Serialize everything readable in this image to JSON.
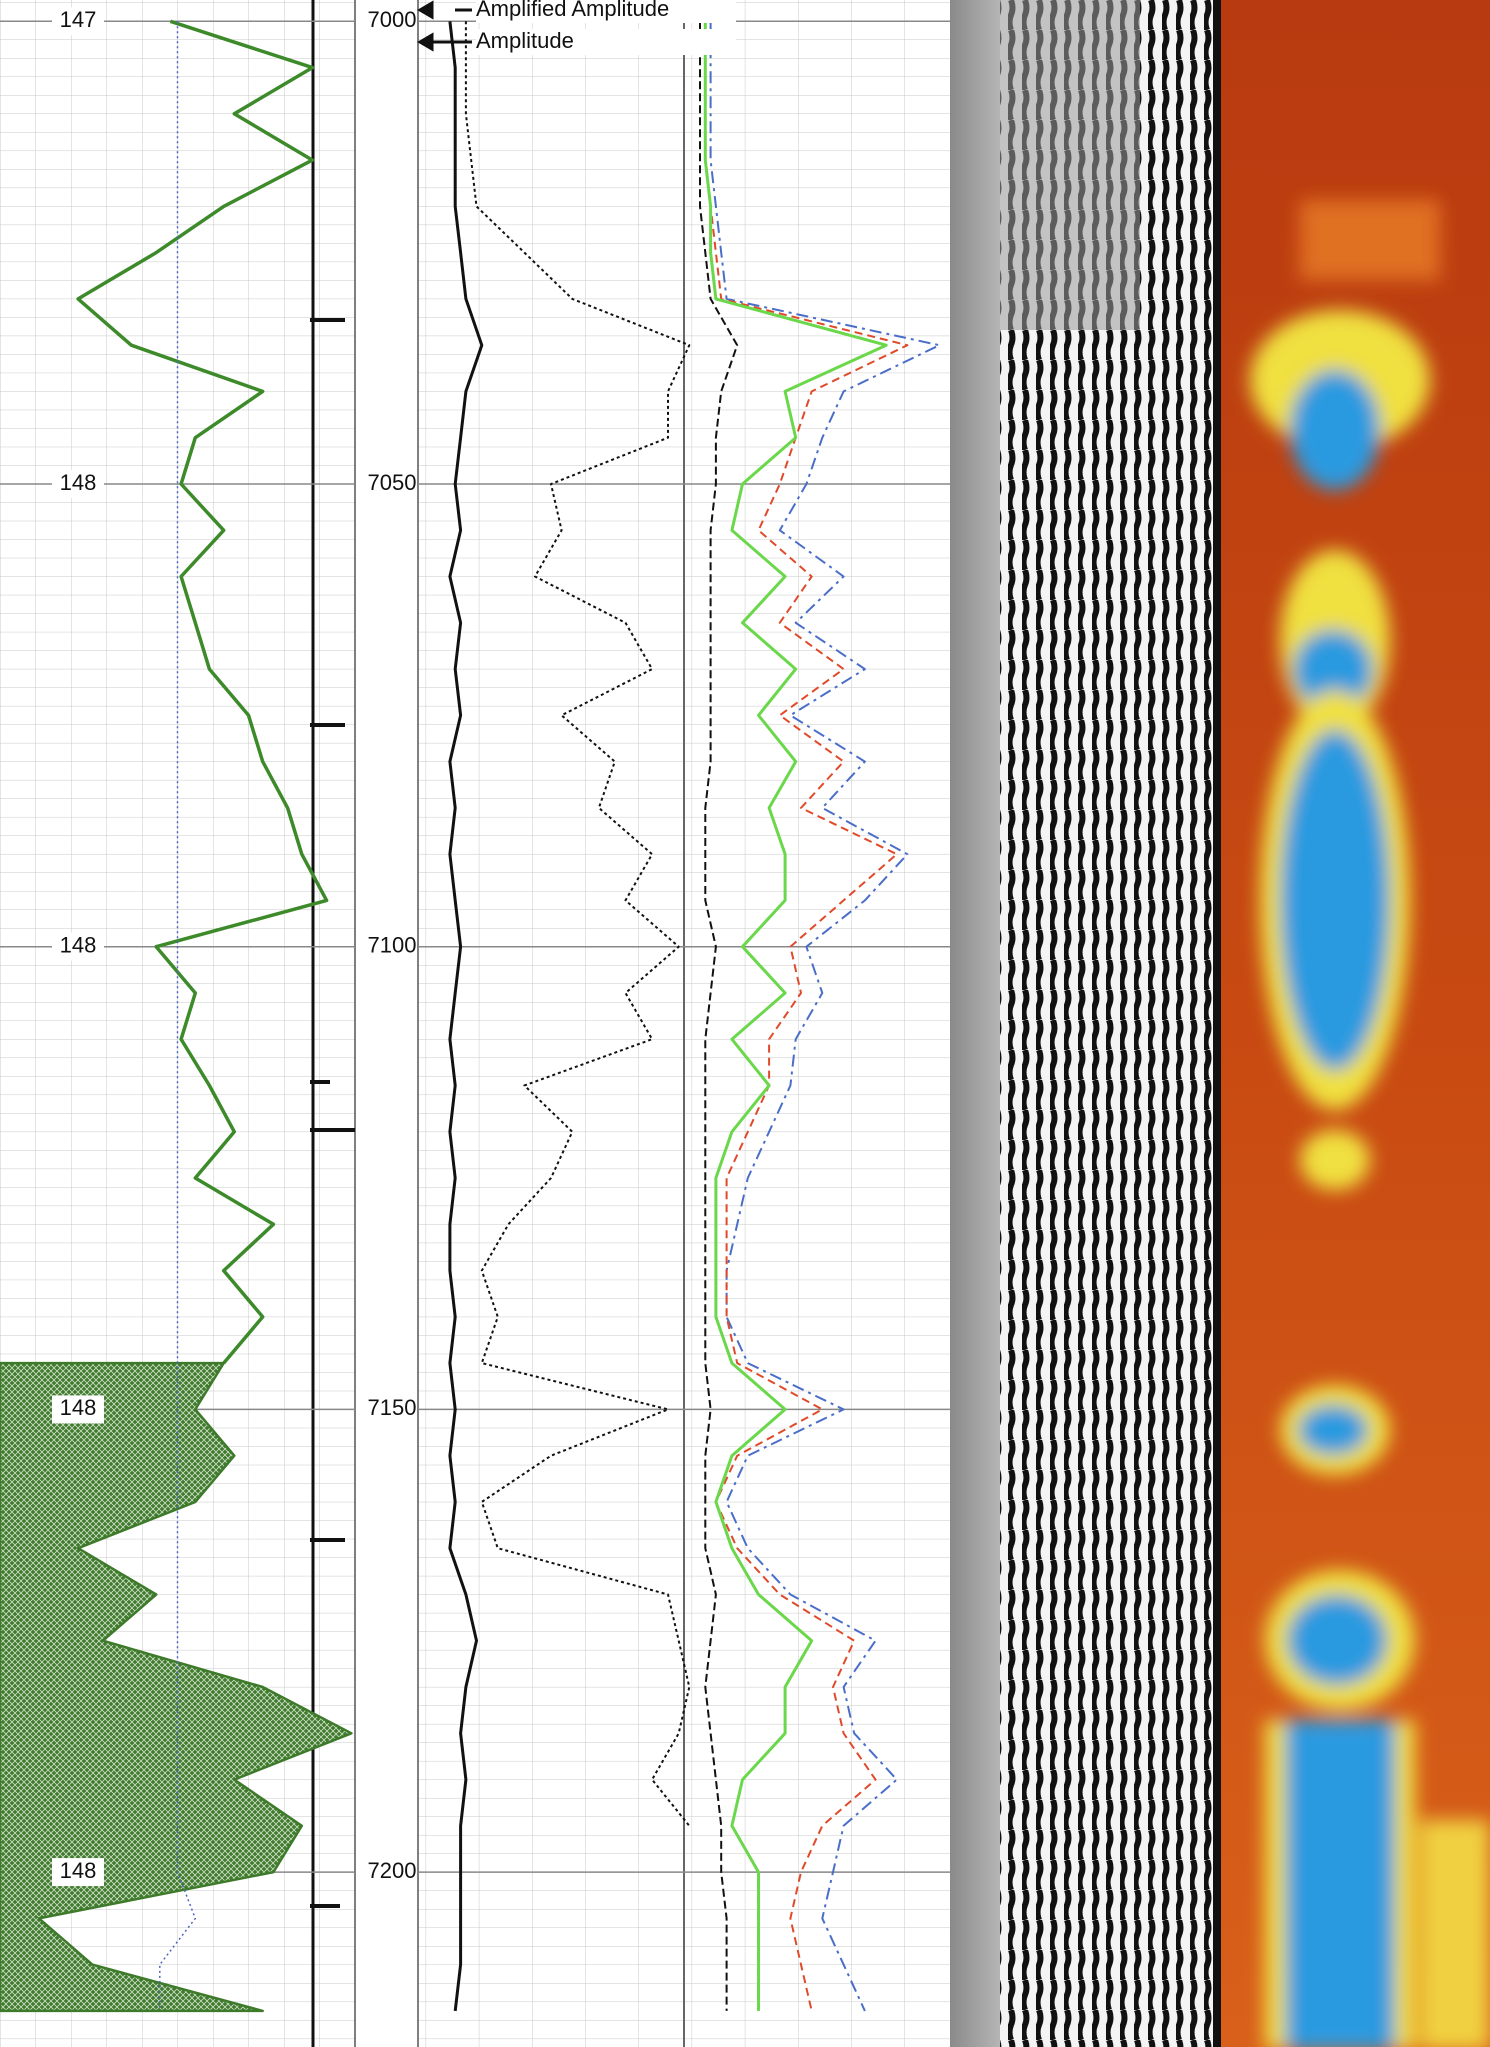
{
  "chart_data": {
    "type": "well-log",
    "ylim": [
      6997.7,
      7218.9
    ],
    "yticks": [
      7000,
      7050,
      7100,
      7150,
      7200
    ],
    "scale_labels": [
      147,
      148,
      148,
      148,
      148
    ],
    "grid": true,
    "tracks": [
      {
        "xlim": [
          0,
          100
        ]
      },
      {
        "xlim": [
          0,
          100
        ]
      }
    ],
    "depth": [
      7000,
      7005,
      7010,
      7015,
      7020,
      7025,
      7030,
      7035,
      7040,
      7045,
      7050,
      7055,
      7060,
      7065,
      7070,
      7075,
      7080,
      7085,
      7090,
      7095,
      7100,
      7105,
      7110,
      7115,
      7120,
      7125,
      7130,
      7135,
      7140,
      7145,
      7150,
      7155,
      7160,
      7165,
      7170,
      7175,
      7180,
      7185,
      7190,
      7195,
      7200,
      7205,
      7210,
      7215
    ],
    "series": [
      {
        "track": 0,
        "color": "#3d8a2a",
        "width": 3.5,
        "values": [
          48,
          88,
          66,
          88,
          63,
          44,
          22,
          37,
          74,
          55,
          51,
          63,
          51,
          55,
          59,
          70,
          74,
          81,
          85,
          92,
          44,
          55,
          51,
          59,
          66,
          55,
          77,
          63,
          74,
          63,
          null,
          null,
          null,
          null,
          null,
          null,
          null,
          null,
          null,
          null,
          null,
          null,
          null,
          null
        ]
      },
      {
        "track": 0,
        "color": "#3d7a2a",
        "width": 2.5,
        "fill": true,
        "values": [
          null,
          null,
          null,
          null,
          null,
          null,
          null,
          null,
          null,
          null,
          null,
          null,
          null,
          null,
          null,
          null,
          null,
          null,
          null,
          null,
          null,
          null,
          null,
          null,
          null,
          null,
          null,
          null,
          null,
          63,
          55,
          66,
          55,
          22,
          44,
          29,
          74,
          99,
          66,
          85,
          77,
          11,
          26,
          74
        ]
      },
      {
        "track": 0,
        "color": "#4a66c0",
        "width": 1.5,
        "dash": "2 3",
        "values": [
          50,
          50,
          50,
          50,
          50,
          50,
          50,
          50,
          50,
          50,
          50,
          50,
          50,
          50,
          50,
          50,
          50,
          50,
          50,
          50,
          50,
          50,
          50,
          50,
          50,
          50,
          50,
          50,
          50,
          50,
          50,
          50,
          50,
          50,
          50,
          50,
          50,
          50,
          50,
          50,
          50,
          55,
          45,
          45
        ]
      },
      {
        "track": 1,
        "name": "Amplified Amplitude",
        "color": "#111111",
        "width": 2,
        "dash": "3 3",
        "values": [
          9,
          9,
          9,
          10,
          11,
          20,
          29,
          51,
          47,
          47,
          25,
          27,
          22,
          39,
          44,
          27,
          37,
          34,
          44,
          39,
          49,
          39,
          44,
          20,
          29,
          25,
          17,
          12,
          15,
          12,
          47,
          25,
          12,
          15,
          47,
          49,
          51,
          49,
          44,
          51,
          null,
          null,
          null,
          null
        ]
      },
      {
        "track": 1,
        "name": "Amplitude",
        "color": "#111111",
        "width": 3,
        "values": [
          6,
          7,
          7,
          7,
          7,
          8,
          9,
          12,
          9,
          8,
          7,
          8,
          6,
          8,
          7,
          8,
          6,
          7,
          6,
          7,
          8,
          7,
          6,
          7,
          6,
          7,
          6,
          6,
          7,
          6,
          7,
          6,
          7,
          6,
          9,
          11,
          9,
          8,
          9,
          8,
          8,
          8,
          8,
          7
        ]
      },
      {
        "track": 1,
        "color": "#111111",
        "width": 2,
        "dash": "8 4",
        "values": [
          53,
          53,
          53,
          53,
          53,
          54,
          55,
          60,
          57,
          56,
          56,
          55,
          55,
          55,
          55,
          55,
          55,
          54,
          54,
          54,
          56,
          55,
          54,
          54,
          54,
          54,
          54,
          54,
          54,
          54,
          55,
          54,
          54,
          54,
          56,
          55,
          54,
          55,
          56,
          57,
          57,
          58,
          58,
          58
        ]
      },
      {
        "track": 1,
        "color": "#4a6ec8",
        "width": 2,
        "dash": "12 5 3 5",
        "values": [
          55,
          55,
          55,
          55,
          56,
          57,
          58,
          98,
          80,
          76,
          73,
          68,
          80,
          71,
          84,
          70,
          84,
          76,
          92,
          84,
          73,
          76,
          71,
          70,
          66,
          62,
          60,
          58,
          58,
          62,
          80,
          62,
          58,
          62,
          70,
          86,
          80,
          82,
          90,
          80,
          78,
          76,
          80,
          84
        ]
      },
      {
        "track": 1,
        "color": "#e04a2a",
        "width": 2,
        "dash": "8 5",
        "values": [
          54,
          54,
          54,
          54,
          55,
          56,
          57,
          92,
          74,
          71,
          68,
          64,
          74,
          68,
          80,
          68,
          80,
          72,
          90,
          80,
          70,
          72,
          66,
          66,
          62,
          58,
          58,
          58,
          58,
          60,
          76,
          60,
          56,
          60,
          68,
          82,
          78,
          80,
          86,
          76,
          72,
          70,
          72,
          74
        ]
      },
      {
        "track": 1,
        "color": "#6ad84a",
        "width": 3,
        "values": [
          54,
          54,
          54,
          54,
          55,
          55,
          56,
          88,
          69,
          71,
          61,
          59,
          69,
          61,
          71,
          64,
          71,
          66,
          69,
          69,
          61,
          69,
          59,
          66,
          59,
          56,
          56,
          56,
          56,
          59,
          69,
          59,
          56,
          59,
          64,
          74,
          69,
          69,
          61,
          59,
          64,
          64,
          64,
          64
        ]
      }
    ]
  }
}
